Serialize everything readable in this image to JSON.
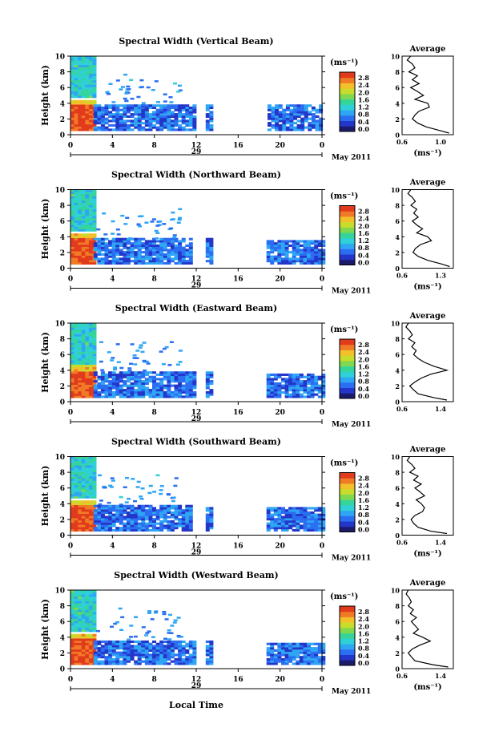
{
  "figure": {
    "xlabel": "Local Time",
    "cbar_unit": "(ms⁻¹)",
    "avg_title": "Average",
    "avg_xlabel": "(ms⁻¹)",
    "ylabel": "Height (km)",
    "date_label": "May 2011",
    "colormap": [
      "#1b1b6b",
      "#2436c9",
      "#2b6ef2",
      "#2fa6f3",
      "#2fd0d8",
      "#35d59a",
      "#7fd84f",
      "#c8dc2c",
      "#f2c12a",
      "#f17a26",
      "#e23a1c"
    ]
  },
  "chart_data": [
    {
      "type": "heatmap",
      "title": "Spectral Width (Vertical Beam)",
      "ylabel": "Height (km)",
      "xlabel": "",
      "ylim": [
        0,
        10
      ],
      "yticks": [
        "0",
        "2",
        "4",
        "6",
        "8",
        "10"
      ],
      "xlim": [
        0,
        24
      ],
      "xticks": [
        "0",
        "4",
        "8",
        "12",
        "16",
        "20",
        "0"
      ],
      "day_label": "29",
      "date_label": "May 2011",
      "colorbar": {
        "unit": "(ms⁻¹)",
        "ticks": [
          "0.0",
          "0.4",
          "0.8",
          "1.2",
          "1.6",
          "2.0",
          "2.4",
          "2.8"
        ],
        "range": [
          0,
          3.0
        ]
      },
      "echo_regions": [
        {
          "t": [
            0,
            2.2
          ],
          "h": [
            0.5,
            10
          ],
          "value": 1.3
        },
        {
          "t": [
            0,
            2.2
          ],
          "h": [
            0.5,
            4.2
          ],
          "value": 2.8
        },
        {
          "t": [
            2.2,
            11.8
          ],
          "h": [
            0.5,
            3.6
          ],
          "value": 0.7
        },
        {
          "t": [
            12.9,
            13.6
          ],
          "h": [
            0.5,
            3.6
          ],
          "value": 0.7
        },
        {
          "t": [
            18.8,
            24
          ],
          "h": [
            0.5,
            3.6
          ],
          "value": 0.7
        }
      ],
      "average": {
        "xlim": [
          0.6,
          1.2
        ],
        "xticks": [
          "0.6",
          "1.0"
        ],
        "xlabel": "(ms⁻¹)",
        "ylim": [
          0,
          10
        ],
        "yticks": [
          "0",
          "2",
          "4",
          "6",
          "8",
          "10"
        ],
        "h": [
          0.2,
          0.5,
          1,
          1.5,
          2,
          2.5,
          3,
          3.5,
          4,
          4.5,
          5,
          5.5,
          6,
          6.5,
          7,
          7.5,
          8,
          8.5,
          9,
          9.5,
          10
        ],
        "value": [
          1.15,
          1.05,
          0.88,
          0.78,
          0.72,
          0.75,
          0.8,
          0.92,
          0.9,
          0.75,
          0.85,
          0.78,
          0.7,
          0.8,
          0.72,
          0.78,
          0.68,
          0.75,
          0.72,
          0.66,
          0.7
        ]
      }
    },
    {
      "type": "heatmap",
      "title": "Spectral Width (Northward Beam)",
      "ylabel": "Height (km)",
      "xlabel": "",
      "ylim": [
        0,
        10
      ],
      "yticks": [
        "0",
        "2",
        "4",
        "6",
        "8",
        "10"
      ],
      "xlim": [
        0,
        24
      ],
      "xticks": [
        "0",
        "4",
        "8",
        "12",
        "16",
        "20",
        "0"
      ],
      "day_label": "29",
      "date_label": "May 2011",
      "colorbar": {
        "unit": "(ms⁻¹)",
        "ticks": [
          "0.0",
          "0.4",
          "0.8",
          "1.2",
          "1.6",
          "2.0",
          "2.4",
          "2.8"
        ],
        "range": [
          0,
          3.0
        ]
      },
      "echo_regions": [
        {
          "t": [
            0,
            2.2
          ],
          "h": [
            0.5,
            10
          ],
          "value": 1.3
        },
        {
          "t": [
            0,
            2.2
          ],
          "h": [
            0.5,
            4.3
          ],
          "value": 2.8
        },
        {
          "t": [
            2.2,
            11.6
          ],
          "h": [
            0.5,
            3.7
          ],
          "value": 0.7
        },
        {
          "t": [
            12.9,
            13.6
          ],
          "h": [
            0.5,
            3.6
          ],
          "value": 0.7
        },
        {
          "t": [
            18.7,
            24
          ],
          "h": [
            0.5,
            3.5
          ],
          "value": 0.7
        }
      ],
      "average": {
        "xlim": [
          0.6,
          1.3
        ],
        "xticks": [
          "0.6",
          "1.3"
        ],
        "xlabel": "(ms⁻¹)",
        "ylim": [
          0,
          10
        ],
        "yticks": [
          "0",
          "2",
          "4",
          "6",
          "8",
          "10"
        ],
        "h": [
          0.2,
          0.5,
          1,
          1.5,
          2,
          2.5,
          3,
          3.5,
          4,
          4.5,
          5,
          5.5,
          6,
          6.5,
          7,
          7.5,
          8,
          8.5,
          9,
          9.5,
          10
        ],
        "value": [
          1.25,
          1.15,
          0.95,
          0.82,
          0.75,
          0.78,
          0.85,
          1.0,
          0.95,
          0.8,
          0.88,
          0.8,
          0.74,
          0.82,
          0.76,
          0.8,
          0.72,
          0.78,
          0.74,
          0.68,
          0.72
        ]
      }
    },
    {
      "type": "heatmap",
      "title": "Spectral Width (Eastward Beam)",
      "ylabel": "Height (km)",
      "xlabel": "",
      "ylim": [
        0,
        10
      ],
      "yticks": [
        "0",
        "2",
        "4",
        "6",
        "8",
        "10"
      ],
      "xlim": [
        0,
        24
      ],
      "xticks": [
        "0",
        "4",
        "8",
        "12",
        "16",
        "20",
        "0"
      ],
      "day_label": "29",
      "date_label": "May 2011",
      "colorbar": {
        "unit": "(ms⁻¹)",
        "ticks": [
          "0.0",
          "0.4",
          "0.8",
          "1.2",
          "1.6",
          "2.0",
          "2.4",
          "2.8"
        ],
        "range": [
          0,
          3.0
        ]
      },
      "echo_regions": [
        {
          "t": [
            0,
            2.2
          ],
          "h": [
            0.5,
            10
          ],
          "value": 1.3
        },
        {
          "t": [
            0,
            2.2
          ],
          "h": [
            0.5,
            4.5
          ],
          "value": 2.8
        },
        {
          "t": [
            2.2,
            11.8
          ],
          "h": [
            0.5,
            3.6
          ],
          "value": 0.7
        },
        {
          "t": [
            12.9,
            13.6
          ],
          "h": [
            0.5,
            3.6
          ],
          "value": 0.7
        },
        {
          "t": [
            18.7,
            24
          ],
          "h": [
            0.5,
            3.5
          ],
          "value": 0.7
        }
      ],
      "average": {
        "xlim": [
          0.6,
          1.4
        ],
        "xticks": [
          "0.6",
          "1.4"
        ],
        "xlabel": "",
        "ylim": [
          0,
          10
        ],
        "yticks": [
          "0",
          "2",
          "4",
          "6",
          "8",
          "10"
        ],
        "h": [
          0.2,
          0.5,
          1,
          1.5,
          2,
          2.5,
          3,
          3.5,
          4,
          4.5,
          5,
          5.5,
          6,
          6.5,
          7,
          7.5,
          8,
          8.5,
          9,
          9.5,
          10
        ],
        "value": [
          1.3,
          1.1,
          0.85,
          0.78,
          0.72,
          0.8,
          0.9,
          1.05,
          1.3,
          1.1,
          0.95,
          0.85,
          0.78,
          0.82,
          0.75,
          0.8,
          0.7,
          0.76,
          0.72,
          0.66,
          0.7
        ]
      }
    },
    {
      "type": "heatmap",
      "title": "Spectral Width (Southward Beam)",
      "ylabel": "Height (km)",
      "xlabel": "",
      "ylim": [
        0,
        10
      ],
      "yticks": [
        "0",
        "2",
        "4",
        "6",
        "8",
        "10"
      ],
      "xlim": [
        0,
        24
      ],
      "xticks": [
        "0",
        "4",
        "8",
        "12",
        "16",
        "20",
        "0"
      ],
      "day_label": "29",
      "date_label": "May 2011",
      "colorbar": {
        "unit": "(ms⁻¹)",
        "ticks": [
          "0.0",
          "0.4",
          "0.8",
          "1.2",
          "1.6",
          "2.0",
          "2.4",
          "2.8"
        ],
        "range": [
          0,
          3.0
        ]
      },
      "echo_regions": [
        {
          "t": [
            0,
            2.2
          ],
          "h": [
            0.5,
            10
          ],
          "value": 1.3
        },
        {
          "t": [
            0,
            2.2
          ],
          "h": [
            0.5,
            4.4
          ],
          "value": 2.8
        },
        {
          "t": [
            2.2,
            11.6
          ],
          "h": [
            0.5,
            3.6
          ],
          "value": 0.7
        },
        {
          "t": [
            12.9,
            13.6
          ],
          "h": [
            0.5,
            3.5
          ],
          "value": 0.7
        },
        {
          "t": [
            18.7,
            24
          ],
          "h": [
            0.5,
            3.4
          ],
          "value": 0.7
        }
      ],
      "average": {
        "xlim": [
          0.6,
          1.4
        ],
        "xticks": [
          "0.6",
          "1.4"
        ],
        "xlabel": "(ms⁻¹)",
        "ylim": [
          0,
          10
        ],
        "yticks": [
          "0",
          "2",
          "4",
          "6",
          "8",
          "10"
        ],
        "h": [
          0.2,
          0.5,
          1,
          1.5,
          2,
          2.5,
          3,
          3.5,
          4,
          4.5,
          5,
          5.5,
          6,
          6.5,
          7,
          7.5,
          8,
          8.5,
          9,
          9.5,
          10
        ],
        "value": [
          1.3,
          1.05,
          0.85,
          0.78,
          0.74,
          0.8,
          0.92,
          0.95,
          0.9,
          0.82,
          0.95,
          0.88,
          0.8,
          0.9,
          0.78,
          0.85,
          0.72,
          0.8,
          0.75,
          0.68,
          0.72
        ]
      }
    },
    {
      "type": "heatmap",
      "title": "Spectral Width (Westward Beam)",
      "ylabel": "Height (km)",
      "xlabel": "Local Time",
      "ylim": [
        0,
        10
      ],
      "yticks": [
        "0",
        "2",
        "4",
        "6",
        "8",
        "10"
      ],
      "xlim": [
        0,
        24
      ],
      "xticks": [
        "0",
        "4",
        "8",
        "12",
        "16",
        "20",
        "0"
      ],
      "day_label": "29",
      "date_label": "May 2011",
      "colorbar": {
        "unit": "(ms⁻¹)",
        "ticks": [
          "0.0",
          "0.4",
          "0.8",
          "1.2",
          "1.6",
          "2.0",
          "2.4",
          "2.8"
        ],
        "range": [
          0,
          3.0
        ]
      },
      "echo_regions": [
        {
          "t": [
            0,
            2.2
          ],
          "h": [
            0.5,
            10
          ],
          "value": 1.3
        },
        {
          "t": [
            0,
            2.2
          ],
          "h": [
            0.5,
            4.2
          ],
          "value": 2.8
        },
        {
          "t": [
            2.2,
            11.8
          ],
          "h": [
            0.5,
            3.4
          ],
          "value": 0.7
        },
        {
          "t": [
            12.9,
            13.6
          ],
          "h": [
            0.5,
            3.4
          ],
          "value": 0.7
        },
        {
          "t": [
            18.7,
            24
          ],
          "h": [
            0.5,
            3.3
          ],
          "value": 0.7
        }
      ],
      "average": {
        "xlim": [
          0.6,
          1.6
        ],
        "xticks": [
          "0.6",
          "1.4"
        ],
        "xlabel": "(ms⁻¹)",
        "ylim": [
          0,
          10
        ],
        "yticks": [
          "0",
          "2",
          "4",
          "6",
          "8",
          "10"
        ],
        "h": [
          0.2,
          0.5,
          1,
          1.5,
          2,
          2.5,
          3,
          3.5,
          4,
          4.5,
          5,
          5.5,
          6,
          6.5,
          7,
          7.5,
          8,
          8.5,
          9,
          9.5,
          10
        ],
        "value": [
          1.5,
          1.2,
          0.85,
          0.78,
          0.72,
          0.8,
          0.95,
          1.15,
          1.0,
          0.82,
          0.92,
          0.85,
          0.78,
          0.88,
          0.76,
          0.82,
          0.72,
          0.78,
          0.74,
          0.68,
          0.72
        ]
      }
    }
  ]
}
